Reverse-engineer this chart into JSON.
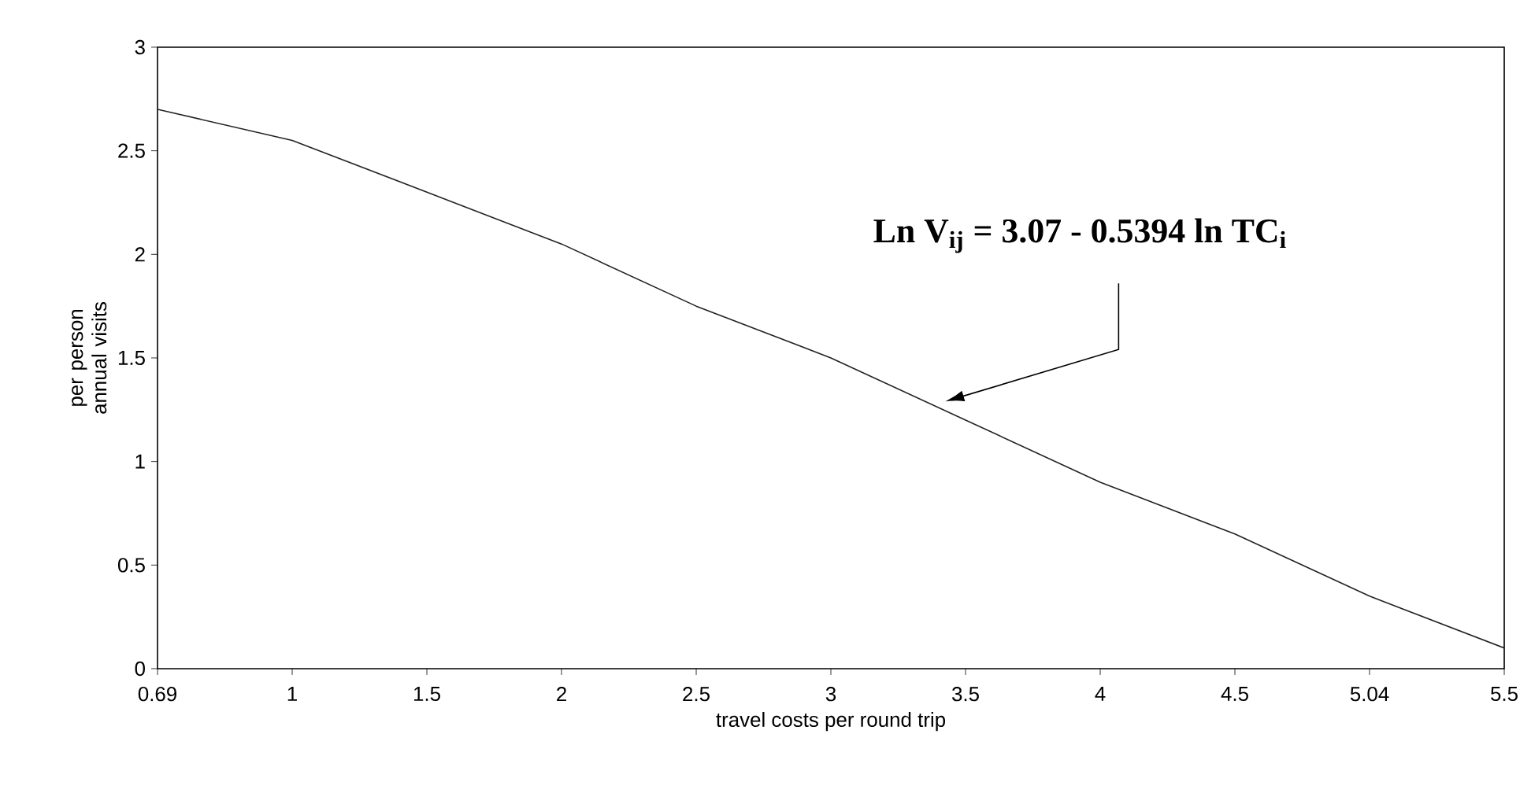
{
  "chart_data": {
    "type": "line",
    "categories": [
      "0.69",
      "1",
      "1.5",
      "2",
      "2.5",
      "3",
      "3.5",
      "4",
      "4.5",
      "5.04",
      "5.5"
    ],
    "values": [
      2.7,
      2.55,
      2.3,
      2.05,
      1.75,
      1.5,
      1.2,
      0.9,
      0.65,
      0.35,
      0.1
    ],
    "color": "#222222",
    "xlabel": "travel costs per round trip",
    "ylabel": "per person annual visits",
    "ylim": [
      0,
      3
    ],
    "yticks": [
      0,
      0.5,
      1,
      1.5,
      2,
      2.5,
      3
    ],
    "annotations": [
      "Ln V$_{ij}$ = 3.07 - 0.5394 ln TC$_{i}$"
    ],
    "grid": false,
    "marker": "none",
    "line_style": "solid"
  }
}
